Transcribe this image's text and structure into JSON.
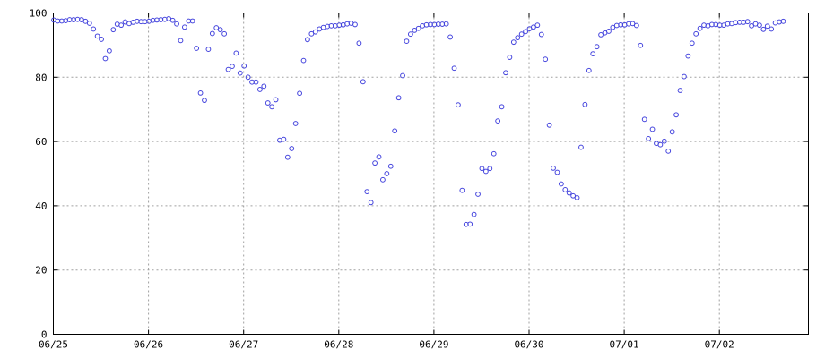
{
  "chart_data": {
    "type": "scatter",
    "title": "",
    "xlabel": "",
    "ylabel": "",
    "x_start": "06/25",
    "x_end": "07/03",
    "ylim": [
      0,
      100
    ],
    "yticks": [
      0,
      20,
      40,
      60,
      80,
      100
    ],
    "xticks": [
      "06/25",
      "06/26",
      "06/27",
      "06/28",
      "06/29",
      "06/30",
      "07/01",
      "07/02"
    ],
    "grid": true,
    "marker_color": "#4444dd",
    "series": [
      {
        "points_per_day": 24,
        "values": [
          97.8,
          97.5,
          97.5,
          97.6,
          97.9,
          97.9,
          98.0,
          97.9,
          97.4,
          96.8,
          95.0,
          92.8,
          91.8,
          85.8,
          88.2,
          94.8,
          96.5,
          96.2,
          97.2,
          96.7,
          97.1,
          97.4,
          97.3,
          97.3,
          97.4,
          97.7,
          97.8,
          97.9,
          98.0,
          98.2,
          97.7,
          96.6,
          91.4,
          95.6,
          97.5,
          97.5,
          89.0,
          75.1,
          72.8,
          88.7,
          93.6,
          95.4,
          94.8,
          93.5,
          82.4,
          83.4,
          87.5,
          81.3,
          83.5,
          80.0,
          78.5,
          78.5,
          76.2,
          77.2,
          72.0,
          70.8,
          73.0,
          60.4,
          60.7,
          55.1,
          57.8,
          65.6,
          75.0,
          85.2,
          91.7,
          93.5,
          94.1,
          95.0,
          95.5,
          95.8,
          96.0,
          96.0,
          96.2,
          96.3,
          96.6,
          96.8,
          96.4,
          90.6,
          78.6,
          44.4,
          41.0,
          53.3,
          55.2,
          48.1,
          50.0,
          52.3,
          63.3,
          73.6,
          80.5,
          91.2,
          93.4,
          94.6,
          95.2,
          96.0,
          96.3,
          96.4,
          96.4,
          96.5,
          96.5,
          96.6,
          92.5,
          82.8,
          71.4,
          44.8,
          34.2,
          34.3,
          37.3,
          43.6,
          51.6,
          50.7,
          51.6,
          56.2,
          66.4,
          70.8,
          81.4,
          86.2,
          90.9,
          92.3,
          93.4,
          94.2,
          95.1,
          95.6,
          96.2,
          93.3,
          85.6,
          65.1,
          51.7,
          50.4,
          46.8,
          45.0,
          44.0,
          43.1,
          42.5,
          58.2,
          71.5,
          82.1,
          87.3,
          89.5,
          93.2,
          93.8,
          94.3,
          95.5,
          96.1,
          96.3,
          96.3,
          96.6,
          96.7,
          96.1,
          89.9,
          66.9,
          60.9,
          63.8,
          59.4,
          59.0,
          60.1,
          57.0,
          63.0,
          68.3,
          75.9,
          80.2,
          86.6,
          90.6,
          93.5,
          95.2,
          96.2,
          96.0,
          96.4,
          96.4,
          96.2,
          96.2,
          96.6,
          96.7,
          97.0,
          97.1,
          97.1,
          97.3,
          96.0,
          96.6,
          96.2,
          94.9,
          95.9,
          95.0,
          96.9,
          97.2,
          97.4
        ]
      }
    ]
  }
}
